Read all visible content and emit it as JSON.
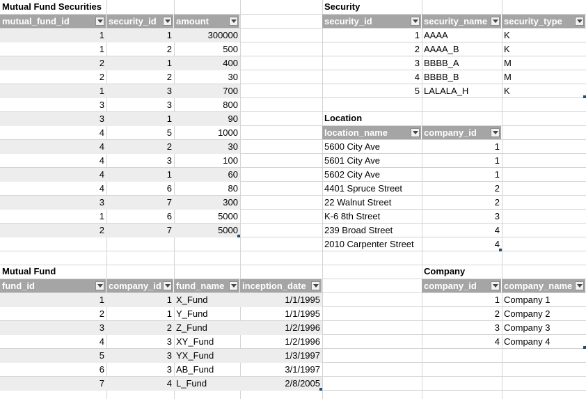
{
  "tables": {
    "mutual_fund_securities": {
      "title": "Mutual Fund Securities",
      "headers": [
        "mutual_fund_id",
        "security_id",
        "amount"
      ],
      "rows": [
        [
          "1",
          "1",
          "300000"
        ],
        [
          "1",
          "2",
          "500"
        ],
        [
          "2",
          "1",
          "400"
        ],
        [
          "2",
          "2",
          "30"
        ],
        [
          "1",
          "3",
          "700"
        ],
        [
          "3",
          "3",
          "800"
        ],
        [
          "3",
          "1",
          "90"
        ],
        [
          "4",
          "5",
          "1000"
        ],
        [
          "4",
          "2",
          "30"
        ],
        [
          "4",
          "3",
          "100"
        ],
        [
          "4",
          "1",
          "60"
        ],
        [
          "4",
          "6",
          "80"
        ],
        [
          "3",
          "7",
          "300"
        ],
        [
          "1",
          "6",
          "5000"
        ],
        [
          "2",
          "7",
          "5000"
        ]
      ]
    },
    "security": {
      "title": "Security",
      "headers": [
        "security_id",
        "security_name",
        "security_type"
      ],
      "rows": [
        [
          "1",
          "AAAA",
          "K"
        ],
        [
          "2",
          "AAAA_B",
          "K"
        ],
        [
          "3",
          "BBBB_A",
          "M"
        ],
        [
          "4",
          "BBBB_B",
          "M"
        ],
        [
          "5",
          "LALALA_H",
          "K"
        ]
      ]
    },
    "location": {
      "title": "Location",
      "headers": [
        "location_name",
        "company_id"
      ],
      "rows": [
        [
          "5600 City Ave",
          "1"
        ],
        [
          "5601 City Ave",
          "1"
        ],
        [
          "5602 City Ave",
          "1"
        ],
        [
          "4401 Spruce Street",
          "2"
        ],
        [
          "22 Walnut Street",
          "2"
        ],
        [
          "K-6 8th Street",
          "3"
        ],
        [
          "239 Broad Street",
          "4"
        ],
        [
          "2010 Carpenter Street",
          "4"
        ]
      ]
    },
    "mutual_fund": {
      "title": "Mutual Fund",
      "headers": [
        "fund_id",
        "company_id",
        "fund_name",
        "inception_date"
      ],
      "rows": [
        [
          "1",
          "1",
          "X_Fund",
          "1/1/1995"
        ],
        [
          "2",
          "1",
          "Y_Fund",
          "1/1/1995"
        ],
        [
          "3",
          "2",
          "Z_Fund",
          "1/2/1996"
        ],
        [
          "4",
          "3",
          "XY_Fund",
          "1/2/1996"
        ],
        [
          "5",
          "3",
          "YX_Fund",
          "1/3/1997"
        ],
        [
          "6",
          "3",
          "AB_Fund",
          "3/1/1997"
        ],
        [
          "7",
          "4",
          "L_Fund",
          "2/8/2005"
        ]
      ]
    },
    "company": {
      "title": "Company",
      "headers": [
        "company_id",
        "company_name"
      ],
      "rows": [
        [
          "1",
          "Company 1"
        ],
        [
          "2",
          "Company 2"
        ],
        [
          "3",
          "Company 3"
        ],
        [
          "4",
          "Company 4"
        ]
      ]
    }
  },
  "colors": {
    "header_bg": "#a5a5a5",
    "band": "#ededed",
    "gridline": "#d4d4d4",
    "handle": "#1f4e79"
  }
}
